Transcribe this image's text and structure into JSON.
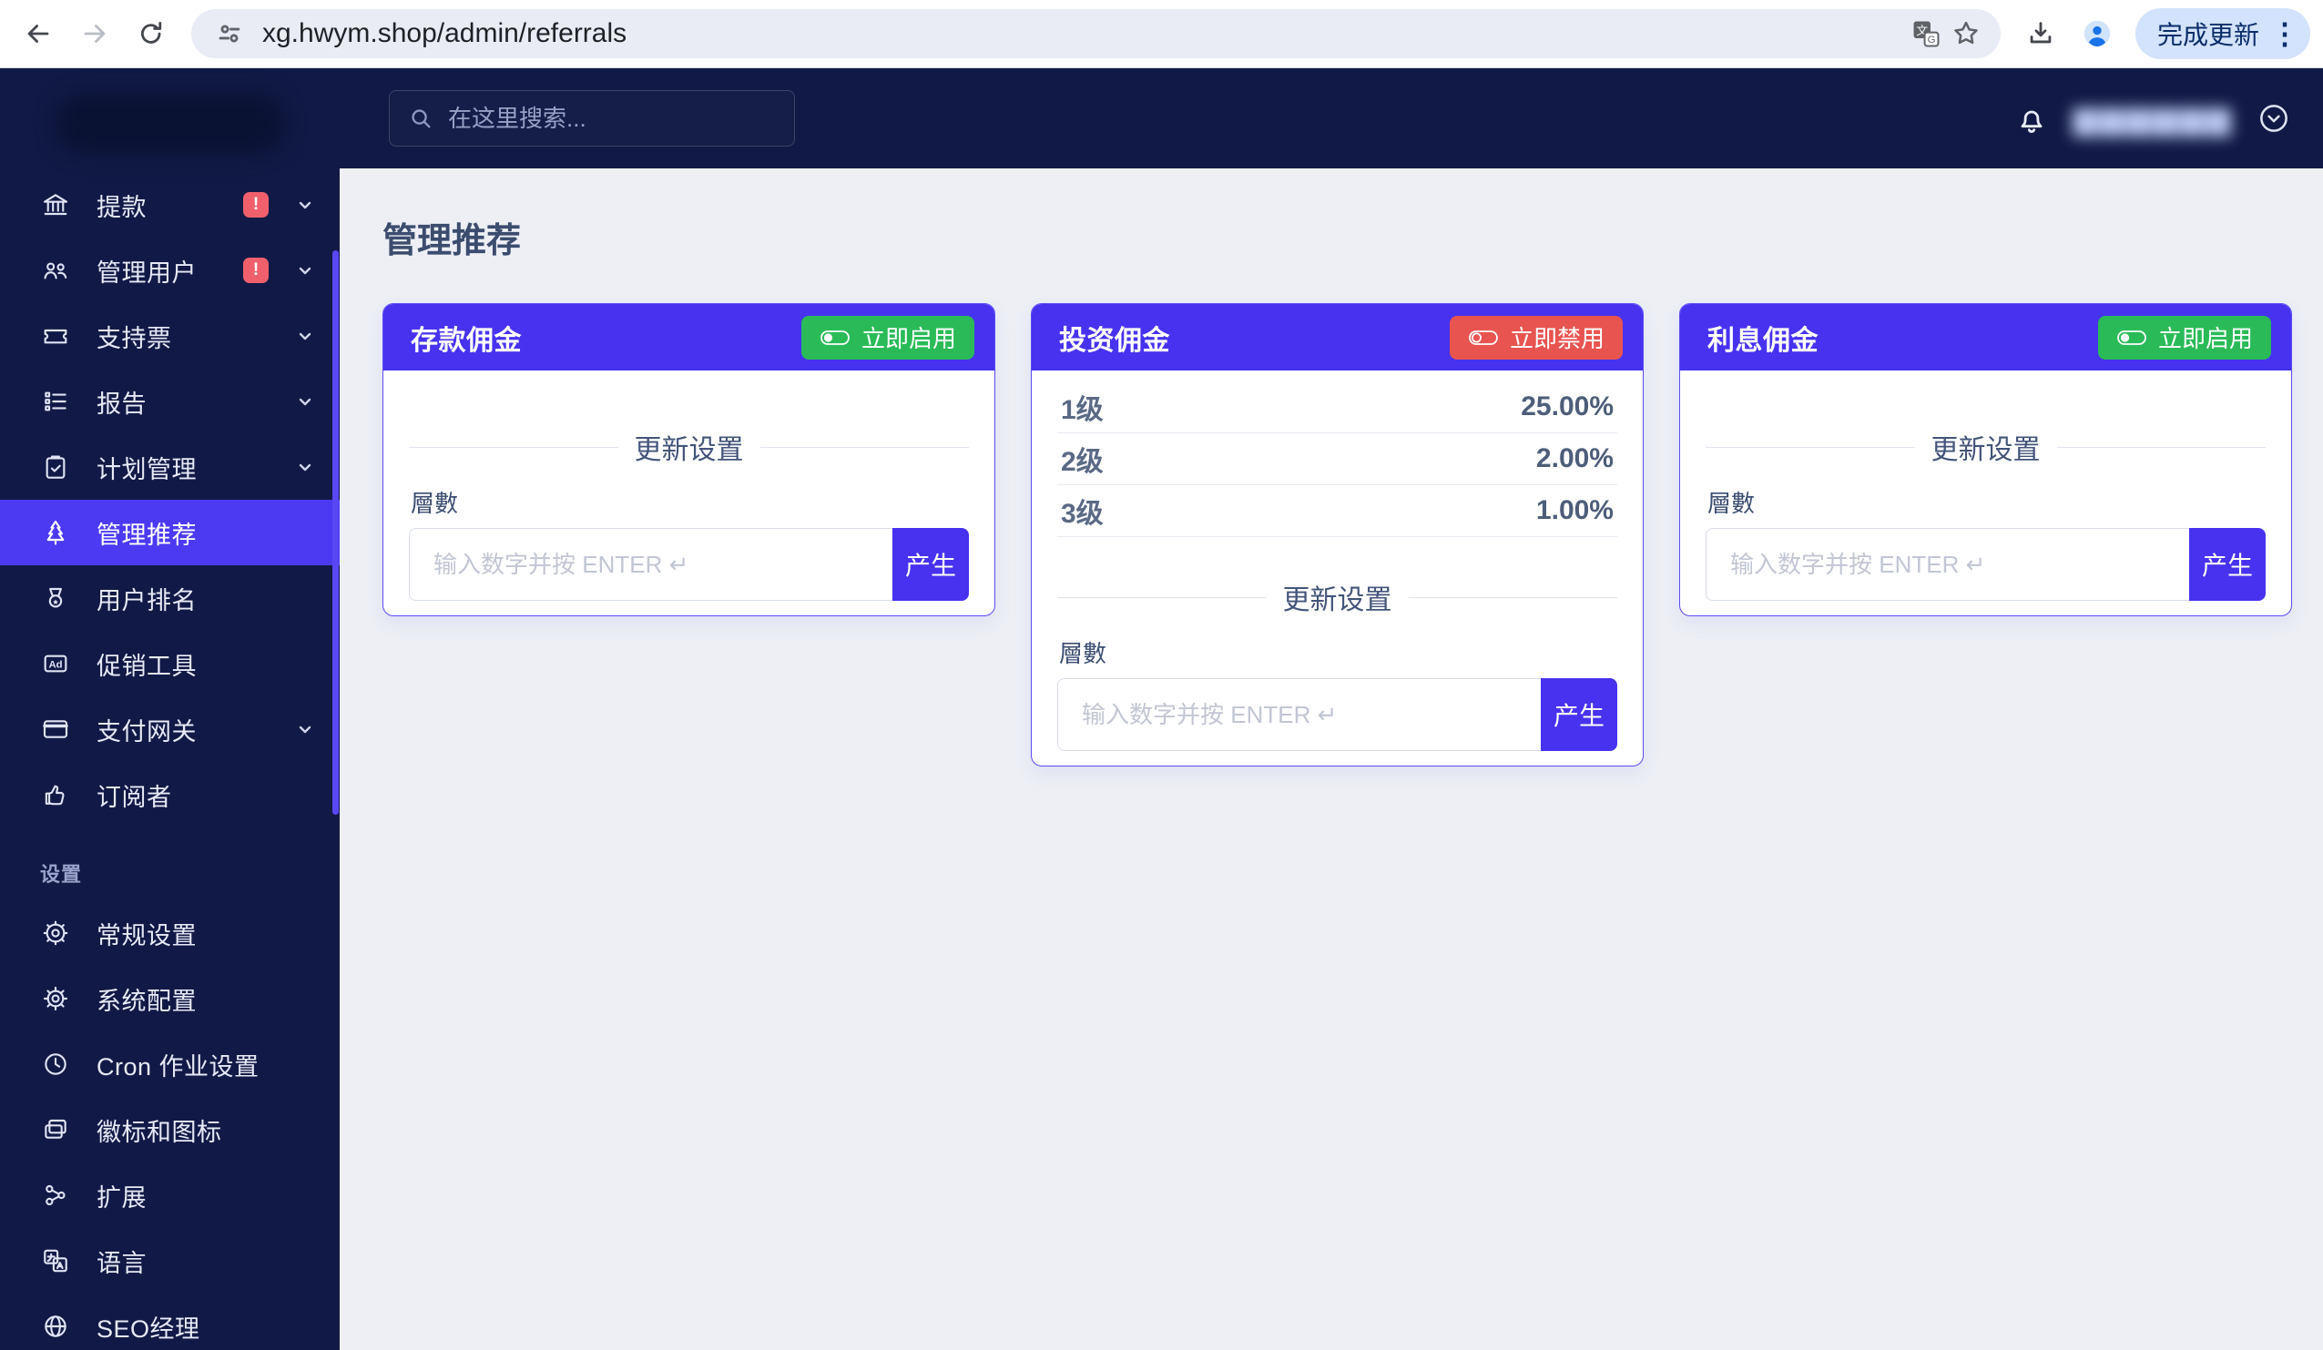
{
  "browser": {
    "url": "xg.hwym.shop/admin/referrals",
    "update_label": "完成更新"
  },
  "topbar": {
    "search_placeholder": "在这里搜索...",
    "user_name_masked": "▆▆▆▆▆▆"
  },
  "page": {
    "title": "管理推荐"
  },
  "sidebar": {
    "items": [
      {
        "key": "withdrawals",
        "icon": "bank",
        "label": "提款",
        "badge": "!",
        "chevron": true
      },
      {
        "key": "manage-users",
        "icon": "users",
        "label": "管理用户",
        "badge": "!",
        "chevron": true
      },
      {
        "key": "support-tickets",
        "icon": "ticket",
        "label": "支持票",
        "chevron": true
      },
      {
        "key": "reports",
        "icon": "list",
        "label": "报告",
        "chevron": true
      },
      {
        "key": "plan-management",
        "icon": "clipboard",
        "label": "计划管理",
        "chevron": true
      },
      {
        "key": "manage-referrals",
        "icon": "tree",
        "label": "管理推荐",
        "active": true
      },
      {
        "key": "user-ranking",
        "icon": "medal",
        "label": "用户排名"
      },
      {
        "key": "promotion-tools",
        "icon": "ad",
        "label": "促销工具"
      },
      {
        "key": "payment-gateways",
        "icon": "credit-card",
        "label": "支付网关",
        "chevron": true
      },
      {
        "key": "subscribers",
        "icon": "thumbs-up",
        "label": "订阅者"
      },
      {
        "key": "general-settings",
        "icon": "dial",
        "label": "常规设置",
        "section": "设置"
      },
      {
        "key": "system-configuration",
        "icon": "gear",
        "label": "系统配置"
      },
      {
        "key": "cron-job-settings",
        "icon": "clock",
        "label": "Cron 作业设置"
      },
      {
        "key": "logo-and-favicon",
        "icon": "frames",
        "label": "徽标和图标"
      },
      {
        "key": "extensions",
        "icon": "nodes",
        "label": "扩展"
      },
      {
        "key": "language",
        "icon": "translate",
        "label": "语言"
      },
      {
        "key": "seo-manager",
        "icon": "globe",
        "label": "SEO经理"
      }
    ]
  },
  "cards": [
    {
      "title": "存款佣金",
      "action_label": "立即启用",
      "action_state": "enable",
      "levels": [],
      "update_settings_label": "更新设置",
      "field_label": "層數",
      "input_placeholder": "输入数字并按 ENTER ↵",
      "submit_label": "产生"
    },
    {
      "title": "投资佣金",
      "action_label": "立即禁用",
      "action_state": "disable",
      "levels": [
        {
          "label": "1级",
          "value": "25.00%"
        },
        {
          "label": "2级",
          "value": "2.00%"
        },
        {
          "label": "3级",
          "value": "1.00%"
        }
      ],
      "update_settings_label": "更新设置",
      "field_label": "層數",
      "input_placeholder": "输入数字并按 ENTER ↵",
      "submit_label": "产生"
    },
    {
      "title": "利息佣金",
      "action_label": "立即启用",
      "action_state": "enable",
      "levels": [],
      "update_settings_label": "更新设置",
      "field_label": "層數",
      "input_placeholder": "输入数字并按 ENTER ↵",
      "submit_label": "产生"
    }
  ],
  "colors": {
    "navy": "#111a46",
    "accent": "#4732f0",
    "active_item": "#4b3af2",
    "enable_green": "#2abb58",
    "disable_red": "#e85450",
    "badge_red": "#f0606c",
    "main_bg": "#edeff5"
  }
}
